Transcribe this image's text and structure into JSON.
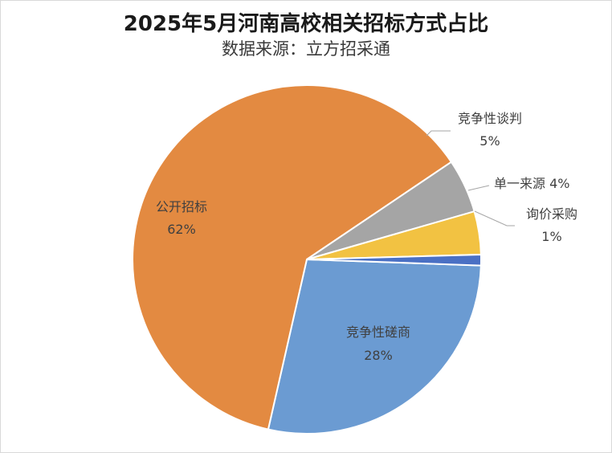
{
  "chart_data": {
    "type": "pie",
    "title": "2025年5月河南高校相关招标方式占比",
    "subtitle": "数据来源：立方招采通",
    "categories": [
      "竞争性磋商",
      "公开招标",
      "竞争性谈判",
      "单一来源",
      "询价采购"
    ],
    "values": [
      28,
      62,
      5,
      4,
      1
    ],
    "value_labels": [
      "28%",
      "62%",
      "5%",
      "4%",
      "1%"
    ],
    "colors": [
      "#6b9bd2",
      "#e38a41",
      "#a5a5a5",
      "#f2c242",
      "#4a70c4"
    ],
    "legend": "none",
    "data_label_position": "outside-with-leaders"
  }
}
